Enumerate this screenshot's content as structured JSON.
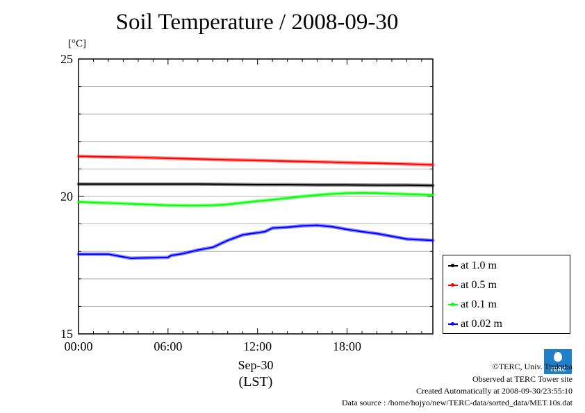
{
  "chart_data": {
    "type": "line",
    "title": "Soil Temperature / 2008-09-30",
    "ylabel": "[°C]",
    "ylim": [
      15,
      25
    ],
    "y_ticks": [
      15,
      20,
      25
    ],
    "xlim": [
      0,
      23.75
    ],
    "x_ticks": [
      {
        "x": 0,
        "label": "00:00"
      },
      {
        "x": 6,
        "label": "06:00"
      },
      {
        "x": 12,
        "label": "12:00"
      },
      {
        "x": 18,
        "label": "18:00"
      }
    ],
    "xlabel_date": "Sep-30",
    "xlabel": "(LST)",
    "grid": "horizontal",
    "legend_position": "bottom-right",
    "series": [
      {
        "name": "at 1.0 m",
        "color": "#000000",
        "x": [
          0,
          2,
          4,
          6,
          8,
          10,
          12,
          14,
          16,
          18,
          20,
          22,
          23.75
        ],
        "values": [
          20.45,
          20.45,
          20.45,
          20.45,
          20.45,
          20.44,
          20.43,
          20.43,
          20.42,
          20.42,
          20.41,
          20.41,
          20.4
        ]
      },
      {
        "name": "at 0.5 m",
        "color": "#ff0000",
        "x": [
          0,
          2,
          4,
          6,
          8,
          10,
          12,
          14,
          16,
          18,
          20,
          22,
          23.75
        ],
        "values": [
          21.46,
          21.44,
          21.42,
          21.39,
          21.36,
          21.33,
          21.31,
          21.28,
          21.26,
          21.23,
          21.21,
          21.18,
          21.15
        ]
      },
      {
        "name": "at 0.1 m",
        "color": "#00ff00",
        "x": [
          0,
          1,
          2,
          3,
          4,
          5,
          6,
          7,
          8,
          9,
          10,
          11,
          12,
          13,
          14,
          15,
          16,
          17,
          18,
          19,
          20,
          21,
          22,
          23.75
        ],
        "values": [
          19.8,
          19.78,
          19.76,
          19.74,
          19.72,
          19.7,
          19.68,
          19.67,
          19.67,
          19.68,
          19.71,
          19.77,
          19.83,
          19.88,
          19.94,
          20.0,
          20.05,
          20.09,
          20.12,
          20.13,
          20.12,
          20.1,
          20.08,
          20.05
        ]
      },
      {
        "name": "at 0.02 m",
        "color": "#0000ff",
        "x": [
          0,
          1,
          2,
          2.5,
          3,
          3.5,
          4,
          5,
          6,
          6.2,
          7,
          8,
          9,
          10,
          11,
          12,
          12.5,
          13,
          14,
          15,
          16,
          17,
          18,
          19,
          20,
          21,
          22,
          23.75
        ],
        "values": [
          17.9,
          17.9,
          17.9,
          17.85,
          17.8,
          17.75,
          17.76,
          17.77,
          17.78,
          17.85,
          17.92,
          18.05,
          18.15,
          18.4,
          18.6,
          18.68,
          18.72,
          18.85,
          18.88,
          18.93,
          18.95,
          18.9,
          18.8,
          18.72,
          18.65,
          18.55,
          18.45,
          18.4
        ]
      }
    ]
  },
  "footer": {
    "credit": "©TERC, Univ. Tsukuba",
    "site": "Observed at TERC Tower site",
    "created": "Created Automatically at 2008-09-30/23:55:10",
    "source": "Data source : /home/hojyo/new/TERC-data/sorted_data/MET.10s.dat",
    "logo_text": "TERC"
  }
}
